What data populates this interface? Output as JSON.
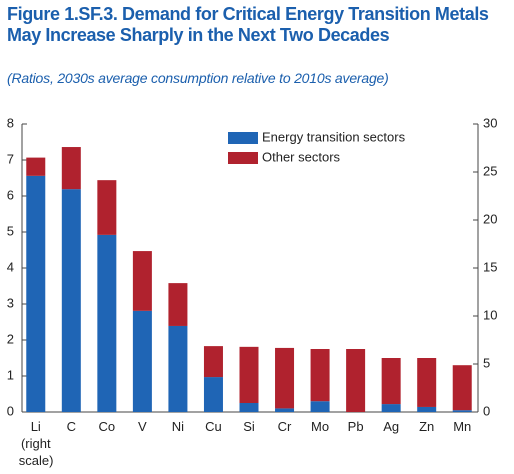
{
  "chart_data": {
    "type": "stacked_bar",
    "title": "Figure 1.SF.3.  Demand for Critical Energy Transition Metals May Increase Sharply in the Next Two Decades",
    "subtitle": "(Ratios, 2030s average consumption relative to 2010s average)",
    "categories": [
      "Li (right scale)",
      "C",
      "Co",
      "V",
      "Ni",
      "Cu",
      "Si",
      "Cr",
      "Mo",
      "Pb",
      "Ag",
      "Zn",
      "Mn"
    ],
    "right_scale_categories": [
      "Li (right scale)"
    ],
    "series": [
      {
        "name": "Energy transition sectors",
        "color": "#1f65b5",
        "values": [
          24.6,
          6.19,
          4.92,
          2.81,
          2.39,
          0.97,
          0.25,
          0.1,
          0.3,
          0,
          0.22,
          0.14,
          0.05
        ]
      },
      {
        "name": "Other sectors",
        "color": "#b0222e",
        "values": [
          1.9,
          1.17,
          1.52,
          1.66,
          1.19,
          0.86,
          1.56,
          1.68,
          1.45,
          1.75,
          1.28,
          1.36,
          1.25
        ]
      }
    ],
    "ylim": [
      0,
      8
    ],
    "yticks": [
      0,
      1,
      2,
      3,
      4,
      5,
      6,
      7,
      8
    ],
    "y2lim": [
      0,
      30
    ],
    "y2ticks": [
      0,
      5,
      10,
      15,
      20,
      25,
      30
    ],
    "legend": "top-right"
  }
}
